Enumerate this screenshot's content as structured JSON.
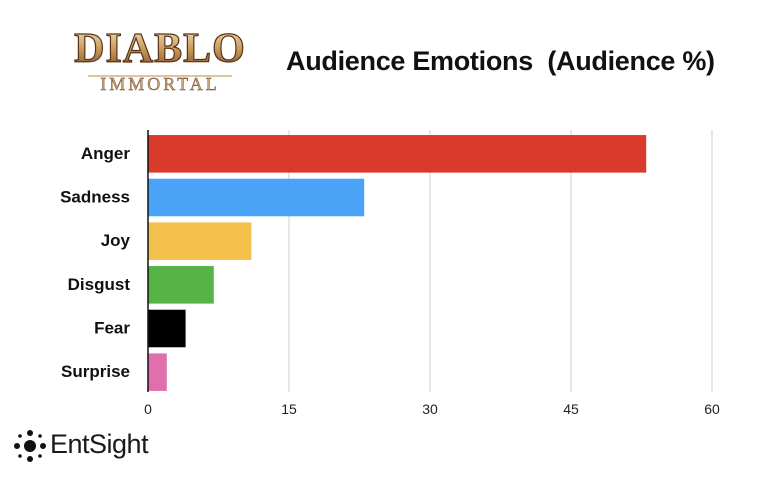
{
  "header": {
    "logo_title": "DIABLO",
    "logo_subtitle": "IMMORTAL",
    "chart_title": "Audience Emotions  (Audience %)"
  },
  "brand": {
    "name": "EntSight"
  },
  "chart_data": {
    "type": "bar",
    "orientation": "horizontal",
    "title": "Audience Emotions  (Audience %)",
    "categories": [
      "Anger",
      "Sadness",
      "Joy",
      "Disgust",
      "Fear",
      "Surprise"
    ],
    "values": [
      53,
      23,
      11,
      7,
      4,
      2
    ],
    "colors": [
      "#d93a2b",
      "#4aa3f7",
      "#f3c04c",
      "#56b345",
      "#000000",
      "#e06fad"
    ],
    "xlim": [
      0,
      60
    ],
    "xticks": [
      0,
      15,
      30,
      45,
      60
    ],
    "grid": true,
    "legend": "none"
  }
}
